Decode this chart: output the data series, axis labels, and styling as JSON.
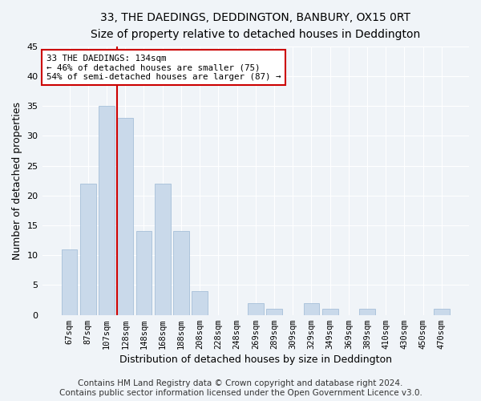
{
  "title": "33, THE DAEDINGS, DEDDINGTON, BANBURY, OX15 0RT",
  "subtitle": "Size of property relative to detached houses in Deddington",
  "xlabel": "Distribution of detached houses by size in Deddington",
  "ylabel": "Number of detached properties",
  "categories": [
    "67sqm",
    "87sqm",
    "107sqm",
    "128sqm",
    "148sqm",
    "168sqm",
    "188sqm",
    "208sqm",
    "228sqm",
    "248sqm",
    "269sqm",
    "289sqm",
    "309sqm",
    "329sqm",
    "349sqm",
    "369sqm",
    "389sqm",
    "410sqm",
    "430sqm",
    "450sqm",
    "470sqm"
  ],
  "values": [
    11,
    22,
    35,
    33,
    14,
    22,
    14,
    4,
    0,
    0,
    2,
    1,
    0,
    2,
    1,
    0,
    1,
    0,
    0,
    0,
    1
  ],
  "bar_color": "#c9d9ea",
  "bar_edgecolor": "#9ab8d4",
  "vline_color": "#cc0000",
  "vline_x_index": 3,
  "annotation_text_line1": "33 THE DAEDINGS: 134sqm",
  "annotation_text_line2": "← 46% of detached houses are smaller (75)",
  "annotation_text_line3": "54% of semi-detached houses are larger (87) →",
  "annotation_box_edgecolor": "#cc0000",
  "annotation_box_facecolor": "#ffffff",
  "ylim": [
    0,
    45
  ],
  "yticks": [
    0,
    5,
    10,
    15,
    20,
    25,
    30,
    35,
    40,
    45
  ],
  "footer_line1": "Contains HM Land Registry data © Crown copyright and database right 2024.",
  "footer_line2": "Contains public sector information licensed under the Open Government Licence v3.0.",
  "background_color": "#f0f4f8",
  "plot_background_color": "#f0f4f8",
  "grid_color": "#ffffff",
  "title_fontsize": 10,
  "subtitle_fontsize": 9,
  "footer_fontsize": 7.5
}
